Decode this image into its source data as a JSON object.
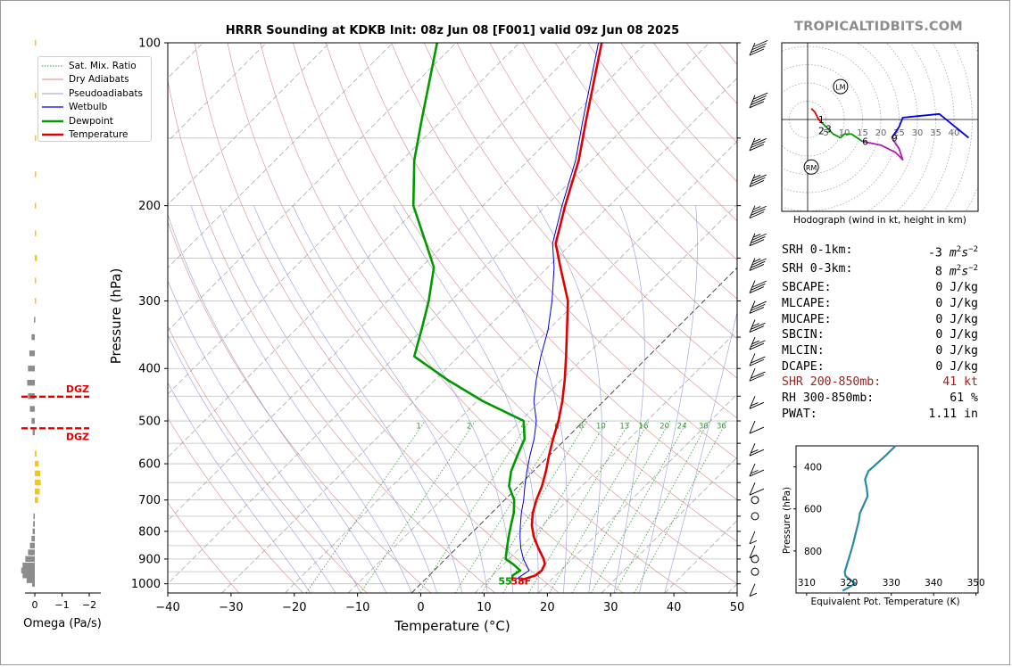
{
  "brand": "TROPICALTIDBITS.COM",
  "title": "HRRR Sounding at KDKB Init: 08z Jun 08 [F001] valid 09z Jun 08 2025",
  "chart_data": [
    {
      "type": "line",
      "title": "HRRR Sounding at KDKB Init: 08z Jun 08 [F001] valid 09z Jun 08 2025",
      "xlabel": "Temperature (°C)",
      "ylabel": "Pressure (hPa)",
      "xlim": [
        -40,
        50
      ],
      "ylim": [
        1040,
        100
      ],
      "y_scale": "log",
      "skew": true,
      "x_ticks": [
        "−40",
        "−30",
        "−20",
        "−10",
        "0",
        "10",
        "20",
        "30",
        "40",
        "50"
      ],
      "y_ticks": [
        "100",
        "200",
        "300",
        "400",
        "500",
        "600",
        "700",
        "800",
        "900",
        "1000"
      ],
      "legend": [
        "Sat. Mix. Ratio",
        "Dry Adiabats",
        "Pseudoadiabats",
        "Wetbulb",
        "Dewpoint",
        "Temperature"
      ],
      "legend_position": "top-left",
      "mixing_ratio_labels": [
        "1",
        "2",
        "4",
        "6",
        "8",
        "10",
        "13",
        "16",
        "20",
        "24",
        "30",
        "36"
      ],
      "surface_dewpoint_label": "55",
      "surface_temperature_label": "58F",
      "series": [
        {
          "name": "Temperature",
          "color": "#e00000",
          "p": [
            985,
            965,
            945,
            920,
            900,
            860,
            820,
            780,
            740,
            700,
            660,
            620,
            580,
            540,
            500,
            460,
            420,
            380,
            340,
            300,
            260,
            235,
            200,
            165,
            140,
            100
          ],
          "t": [
            15.2,
            16.8,
            17.0,
            16.5,
            15.5,
            13.0,
            10.5,
            8.3,
            6.5,
            5.0,
            3.7,
            2.0,
            0.0,
            -2.0,
            -4.0,
            -6.5,
            -9.5,
            -13.0,
            -17.0,
            -21.5,
            -28.0,
            -32.5,
            -37.0,
            -42.0,
            -47.0,
            -57.0
          ]
        },
        {
          "name": "Dewpoint",
          "color": "#009900",
          "p": [
            985,
            965,
            945,
            920,
            900,
            860,
            820,
            780,
            740,
            700,
            660,
            620,
            580,
            540,
            500,
            460,
            420,
            380,
            340,
            300,
            260,
            235,
            200,
            165,
            140,
            100
          ],
          "t": [
            13.8,
            13.2,
            13.6,
            11.5,
            9.5,
            8.0,
            6.5,
            5.0,
            3.5,
            1.5,
            -1.5,
            -3.5,
            -5.0,
            -6.5,
            -9.5,
            -19.0,
            -28.0,
            -37.0,
            -40.0,
            -43.5,
            -48.0,
            -53.0,
            -61.0,
            -68.0,
            -73.0,
            -83.0
          ]
        },
        {
          "name": "Wetbulb",
          "color": "#0000dd",
          "p": [
            985,
            945,
            900,
            860,
            820,
            780,
            740,
            700,
            660,
            620,
            580,
            540,
            500,
            460,
            420,
            380,
            340,
            300,
            260,
            235,
            200,
            165,
            140,
            100
          ],
          "t": [
            14.3,
            15.0,
            12.3,
            10.2,
            8.3,
            6.5,
            4.7,
            3.0,
            1.0,
            -1.0,
            -3.0,
            -5.0,
            -7.5,
            -11.0,
            -14.0,
            -17.0,
            -20.0,
            -24.0,
            -29.0,
            -33.0,
            -37.5,
            -42.5,
            -47.5,
            -57.5
          ]
        }
      ],
      "wind_barbs_kt": [
        {
          "p": 1000,
          "kt": 5
        },
        {
          "p": 950,
          "kt": 0
        },
        {
          "p": 900,
          "kt": 0
        },
        {
          "p": 850,
          "kt": 5
        },
        {
          "p": 800,
          "kt": 5
        },
        {
          "p": 750,
          "kt": 0
        },
        {
          "p": 700,
          "kt": 0
        },
        {
          "p": 650,
          "kt": 10
        },
        {
          "p": 600,
          "kt": 15
        },
        {
          "p": 550,
          "kt": 15
        },
        {
          "p": 500,
          "kt": 10
        },
        {
          "p": 450,
          "kt": 15
        },
        {
          "p": 400,
          "kt": 20
        },
        {
          "p": 375,
          "kt": 20
        },
        {
          "p": 350,
          "kt": 25
        },
        {
          "p": 325,
          "kt": 25
        },
        {
          "p": 300,
          "kt": 30
        },
        {
          "p": 275,
          "kt": 30
        },
        {
          "p": 250,
          "kt": 35
        },
        {
          "p": 225,
          "kt": 35
        },
        {
          "p": 200,
          "kt": 35
        },
        {
          "p": 175,
          "kt": 35
        },
        {
          "p": 150,
          "kt": 35
        },
        {
          "p": 125,
          "kt": 40
        },
        {
          "p": 100,
          "kt": 40
        }
      ]
    },
    {
      "type": "bar",
      "title": "",
      "xlabel": "Omega (Pa/s)",
      "ylabel": "",
      "xlim": [
        0.5,
        -2.5
      ],
      "x_ticks": [
        "0",
        "−1",
        "−2"
      ],
      "orientation": "horizontal",
      "dgz_label": "DGZ",
      "dgz_bounds_hpa": [
        451,
        516
      ],
      "bars": [
        {
          "p": 1000,
          "omega": 0.1,
          "color": "#8c8c8c"
        },
        {
          "p": 985,
          "omega": 0.3,
          "color": "#8c8c8c"
        },
        {
          "p": 965,
          "omega": 0.45,
          "color": "#8c8c8c"
        },
        {
          "p": 945,
          "omega": 0.5,
          "color": "#8c8c8c"
        },
        {
          "p": 925,
          "omega": 0.45,
          "color": "#8c8c8c"
        },
        {
          "p": 900,
          "omega": 0.35,
          "color": "#8c8c8c"
        },
        {
          "p": 875,
          "omega": 0.25,
          "color": "#8c8c8c"
        },
        {
          "p": 850,
          "omega": 0.18,
          "color": "#8c8c8c"
        },
        {
          "p": 825,
          "omega": 0.12,
          "color": "#8c8c8c"
        },
        {
          "p": 800,
          "omega": 0.08,
          "color": "#8c8c8c"
        },
        {
          "p": 775,
          "omega": 0.06,
          "color": "#8c8c8c"
        },
        {
          "p": 750,
          "omega": 0.05,
          "color": "#8c8c8c"
        },
        {
          "p": 700,
          "omega": -0.12,
          "color": "#f5c518"
        },
        {
          "p": 675,
          "omega": -0.18,
          "color": "#f5c518"
        },
        {
          "p": 650,
          "omega": -0.22,
          "color": "#f5c518"
        },
        {
          "p": 625,
          "omega": -0.2,
          "color": "#f5c518"
        },
        {
          "p": 600,
          "omega": -0.14,
          "color": "#f5c518"
        },
        {
          "p": 575,
          "omega": -0.06,
          "color": "#f5c518"
        },
        {
          "p": 525,
          "omega": 0.08,
          "color": "#8c8c8c"
        },
        {
          "p": 500,
          "omega": 0.12,
          "color": "#8c8c8c"
        },
        {
          "p": 475,
          "omega": 0.18,
          "color": "#8c8c8c"
        },
        {
          "p": 450,
          "omega": 0.25,
          "color": "#8c8c8c"
        },
        {
          "p": 425,
          "omega": 0.28,
          "color": "#8c8c8c"
        },
        {
          "p": 400,
          "omega": 0.25,
          "color": "#8c8c8c"
        },
        {
          "p": 375,
          "omega": 0.2,
          "color": "#8c8c8c"
        },
        {
          "p": 350,
          "omega": 0.12,
          "color": "#8c8c8c"
        },
        {
          "p": 325,
          "omega": 0.03,
          "color": "#8c8c8c"
        },
        {
          "p": 300,
          "omega": -0.02,
          "color": "#f5c518"
        },
        {
          "p": 275,
          "omega": -0.02,
          "color": "#f5c518"
        },
        {
          "p": 250,
          "omega": -0.08,
          "color": "#f5c518"
        },
        {
          "p": 225,
          "omega": -0.05,
          "color": "#f5c518"
        },
        {
          "p": 200,
          "omega": -0.05,
          "color": "#f5c518"
        },
        {
          "p": 175,
          "omega": -0.05,
          "color": "#f5c518"
        },
        {
          "p": 150,
          "omega": -0.05,
          "color": "#f5c518"
        },
        {
          "p": 125,
          "omega": -0.05,
          "color": "#f5c518"
        },
        {
          "p": 100,
          "omega": -0.05,
          "color": "#f5c518"
        }
      ]
    },
    {
      "type": "line",
      "title": "Hodograph (wind in kt, height in km)",
      "ring_labels": [
        "5",
        "10",
        "15",
        "20",
        "25",
        "30",
        "35",
        "40"
      ],
      "markers": [
        "LM",
        "RM"
      ],
      "height_labels": [
        {
          "km": "1",
          "u": 3,
          "v": 0
        },
        {
          "km": "2",
          "u": 3,
          "v": -3
        },
        {
          "km": "3",
          "u": 5,
          "v": -2.5
        },
        {
          "km": "6",
          "u": 15,
          "v": -6
        },
        {
          "km": "9",
          "u": 23,
          "v": -5
        }
      ],
      "segments": [
        {
          "color": "#e00000",
          "points": [
            [
              1,
              3
            ],
            [
              2,
              2
            ],
            [
              3,
              0
            ],
            [
              4,
              -1
            ]
          ]
        },
        {
          "color": "#009900",
          "points": [
            [
              4,
              -1
            ],
            [
              7,
              -4
            ],
            [
              9,
              -5
            ],
            [
              10,
              -4
            ],
            [
              12,
              -4
            ],
            [
              15,
              -6
            ]
          ]
        },
        {
          "color": "#b01ab8",
          "points": [
            [
              15,
              -6
            ],
            [
              20,
              -7
            ],
            [
              24,
              -9
            ],
            [
              26,
              -11
            ],
            [
              25,
              -8
            ],
            [
              23,
              -5
            ]
          ]
        },
        {
          "color": "#0000ee",
          "points": [
            [
              23,
              -5
            ],
            [
              25,
              -2
            ],
            [
              26,
              0.5
            ],
            [
              36,
              1.5
            ],
            [
              44,
              -5
            ]
          ]
        }
      ],
      "lm": [
        9,
        9
      ],
      "rm": [
        1,
        -13
      ]
    },
    {
      "type": "line",
      "title": "",
      "xlabel": "Equivalent Pot. Temperature (K)",
      "ylabel": "Pressure (hPa)",
      "x_ticks": [
        "310",
        "320",
        "330",
        "340",
        "350"
      ],
      "y_ticks": [
        "400",
        "600",
        "800"
      ],
      "xlim": [
        307.5,
        350.5
      ],
      "ylim": [
        1000,
        300
      ],
      "series": [
        {
          "name": "",
          "color": "#2a8aa6",
          "p": [
            990,
            975,
            955,
            940,
            920,
            900,
            860,
            820,
            780,
            740,
            700,
            660,
            620,
            580,
            540,
            500,
            460,
            420,
            380,
            340,
            300
          ],
          "theta_e": [
            318.5,
            319.8,
            321.5,
            320.5,
            319.2,
            319.0,
            319.6,
            320.2,
            320.8,
            321.3,
            321.8,
            322.3,
            322.6,
            323.5,
            324.4,
            324.2,
            323.8,
            324.6,
            326.8,
            329.0,
            331.0
          ]
        }
      ]
    }
  ],
  "parameters": [
    {
      "label": "SRH 0-1km:",
      "value": "-3",
      "unit": "m2s-2"
    },
    {
      "label": "SRH 0-3km:",
      "value": "8",
      "unit": "m2s-2"
    },
    {
      "label": "SBCAPE:",
      "value": "0 J/kg"
    },
    {
      "label": "MLCAPE:",
      "value": "0 J/kg"
    },
    {
      "label": "MUCAPE:",
      "value": "0 J/kg"
    },
    {
      "label": "SBCIN:",
      "value": "0 J/kg"
    },
    {
      "label": "MLCIN:",
      "value": "0 J/kg"
    },
    {
      "label": "DCAPE:",
      "value": "0 J/kg"
    },
    {
      "label": "SHR 200-850mb:",
      "value": "41 kt",
      "highlight": true
    },
    {
      "label": "RH 300-850mb:",
      "value": "61 %"
    },
    {
      "label": "PWAT:",
      "value": "1.11 in"
    }
  ],
  "colors": {
    "temperature": "#e00000",
    "dewpoint": "#009900",
    "wetbulb": "#0000dd",
    "dry_adiabat": "#d88a8a",
    "moist_adiabat": "#9a9ad8",
    "mixing_ratio": "#3a9a3a",
    "isotherm": "#a0a0a0",
    "omega_down": "#8c8c8c",
    "omega_up": "#f5c518",
    "dgz": "#e00000",
    "theta_e": "#2a8aa6"
  }
}
